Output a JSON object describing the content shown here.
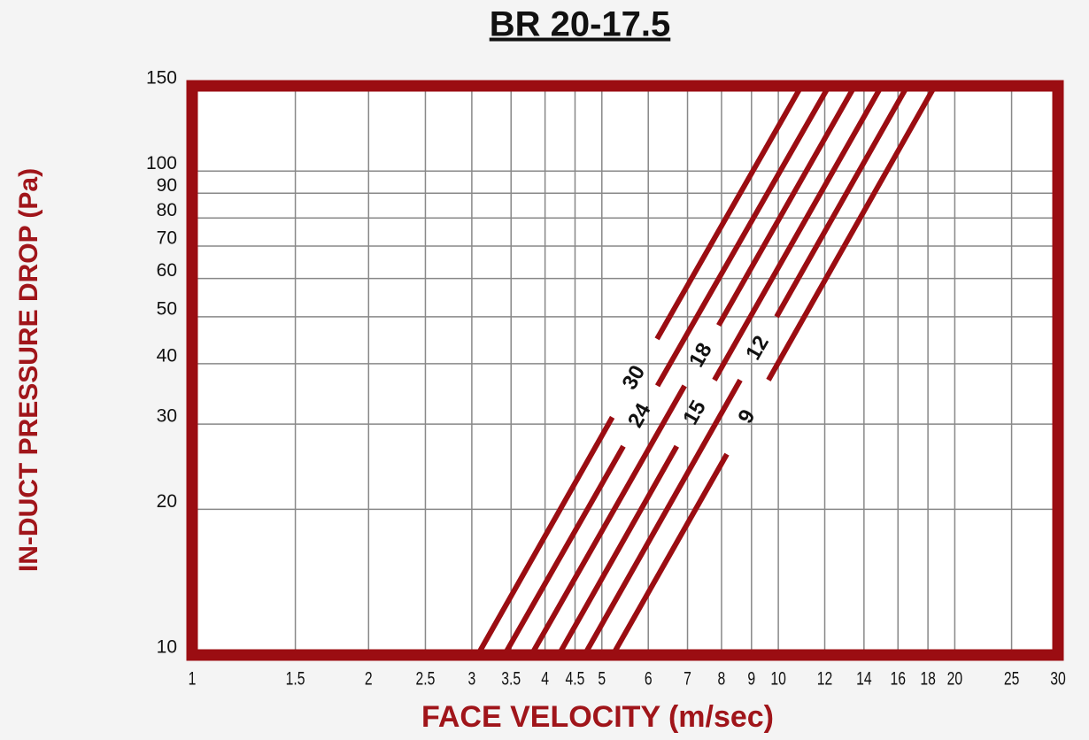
{
  "chart_data": {
    "type": "line",
    "title": "BR 20-17.5",
    "xlabel": "FACE VELOCITY (m/sec)",
    "ylabel": "IN-DUCT PRESSURE DROP (Pa)",
    "xscale": "log",
    "yscale": "log",
    "grid": true,
    "color": "#9b0d12",
    "xlim": [
      1,
      30
    ],
    "ylim": [
      10,
      150
    ],
    "xticks": [
      1,
      1.5,
      2,
      2.5,
      3,
      3.5,
      4,
      4.5,
      5,
      6,
      7,
      8,
      9,
      10,
      12,
      14,
      16,
      18,
      20,
      25,
      30
    ],
    "yticks": [
      10,
      20,
      30,
      40,
      50,
      60,
      70,
      80,
      90,
      100,
      150
    ],
    "series": [
      {
        "name": "30",
        "color": "#9b0d12",
        "x": [
          3.07,
          5.21,
          null,
          6.21,
          10.95
        ],
        "values": [
          10,
          31,
          null,
          45,
          150
        ]
      },
      {
        "name": "24",
        "color": "#9b0d12",
        "x": [
          3.41,
          5.44,
          null,
          6.22,
          12.2
        ],
        "values": [
          10,
          27,
          null,
          36,
          150
        ]
      },
      {
        "name": "18",
        "color": "#9b0d12",
        "x": [
          3.79,
          6.92,
          null,
          7.91,
          13.5
        ],
        "values": [
          10,
          36,
          null,
          48,
          150
        ]
      },
      {
        "name": "15",
        "color": "#9b0d12",
        "x": [
          4.22,
          6.71,
          null,
          7.78,
          15.0
        ],
        "values": [
          10,
          27,
          null,
          37,
          150
        ]
      },
      {
        "name": "12",
        "color": "#9b0d12",
        "x": [
          4.67,
          8.61,
          null,
          9.93,
          16.6
        ],
        "values": [
          10,
          37,
          null,
          50,
          150
        ]
      },
      {
        "name": "9",
        "color": "#9b0d12",
        "x": [
          5.22,
          8.17,
          null,
          9.62,
          18.5
        ],
        "values": [
          10,
          26,
          null,
          37,
          150
        ]
      }
    ]
  }
}
